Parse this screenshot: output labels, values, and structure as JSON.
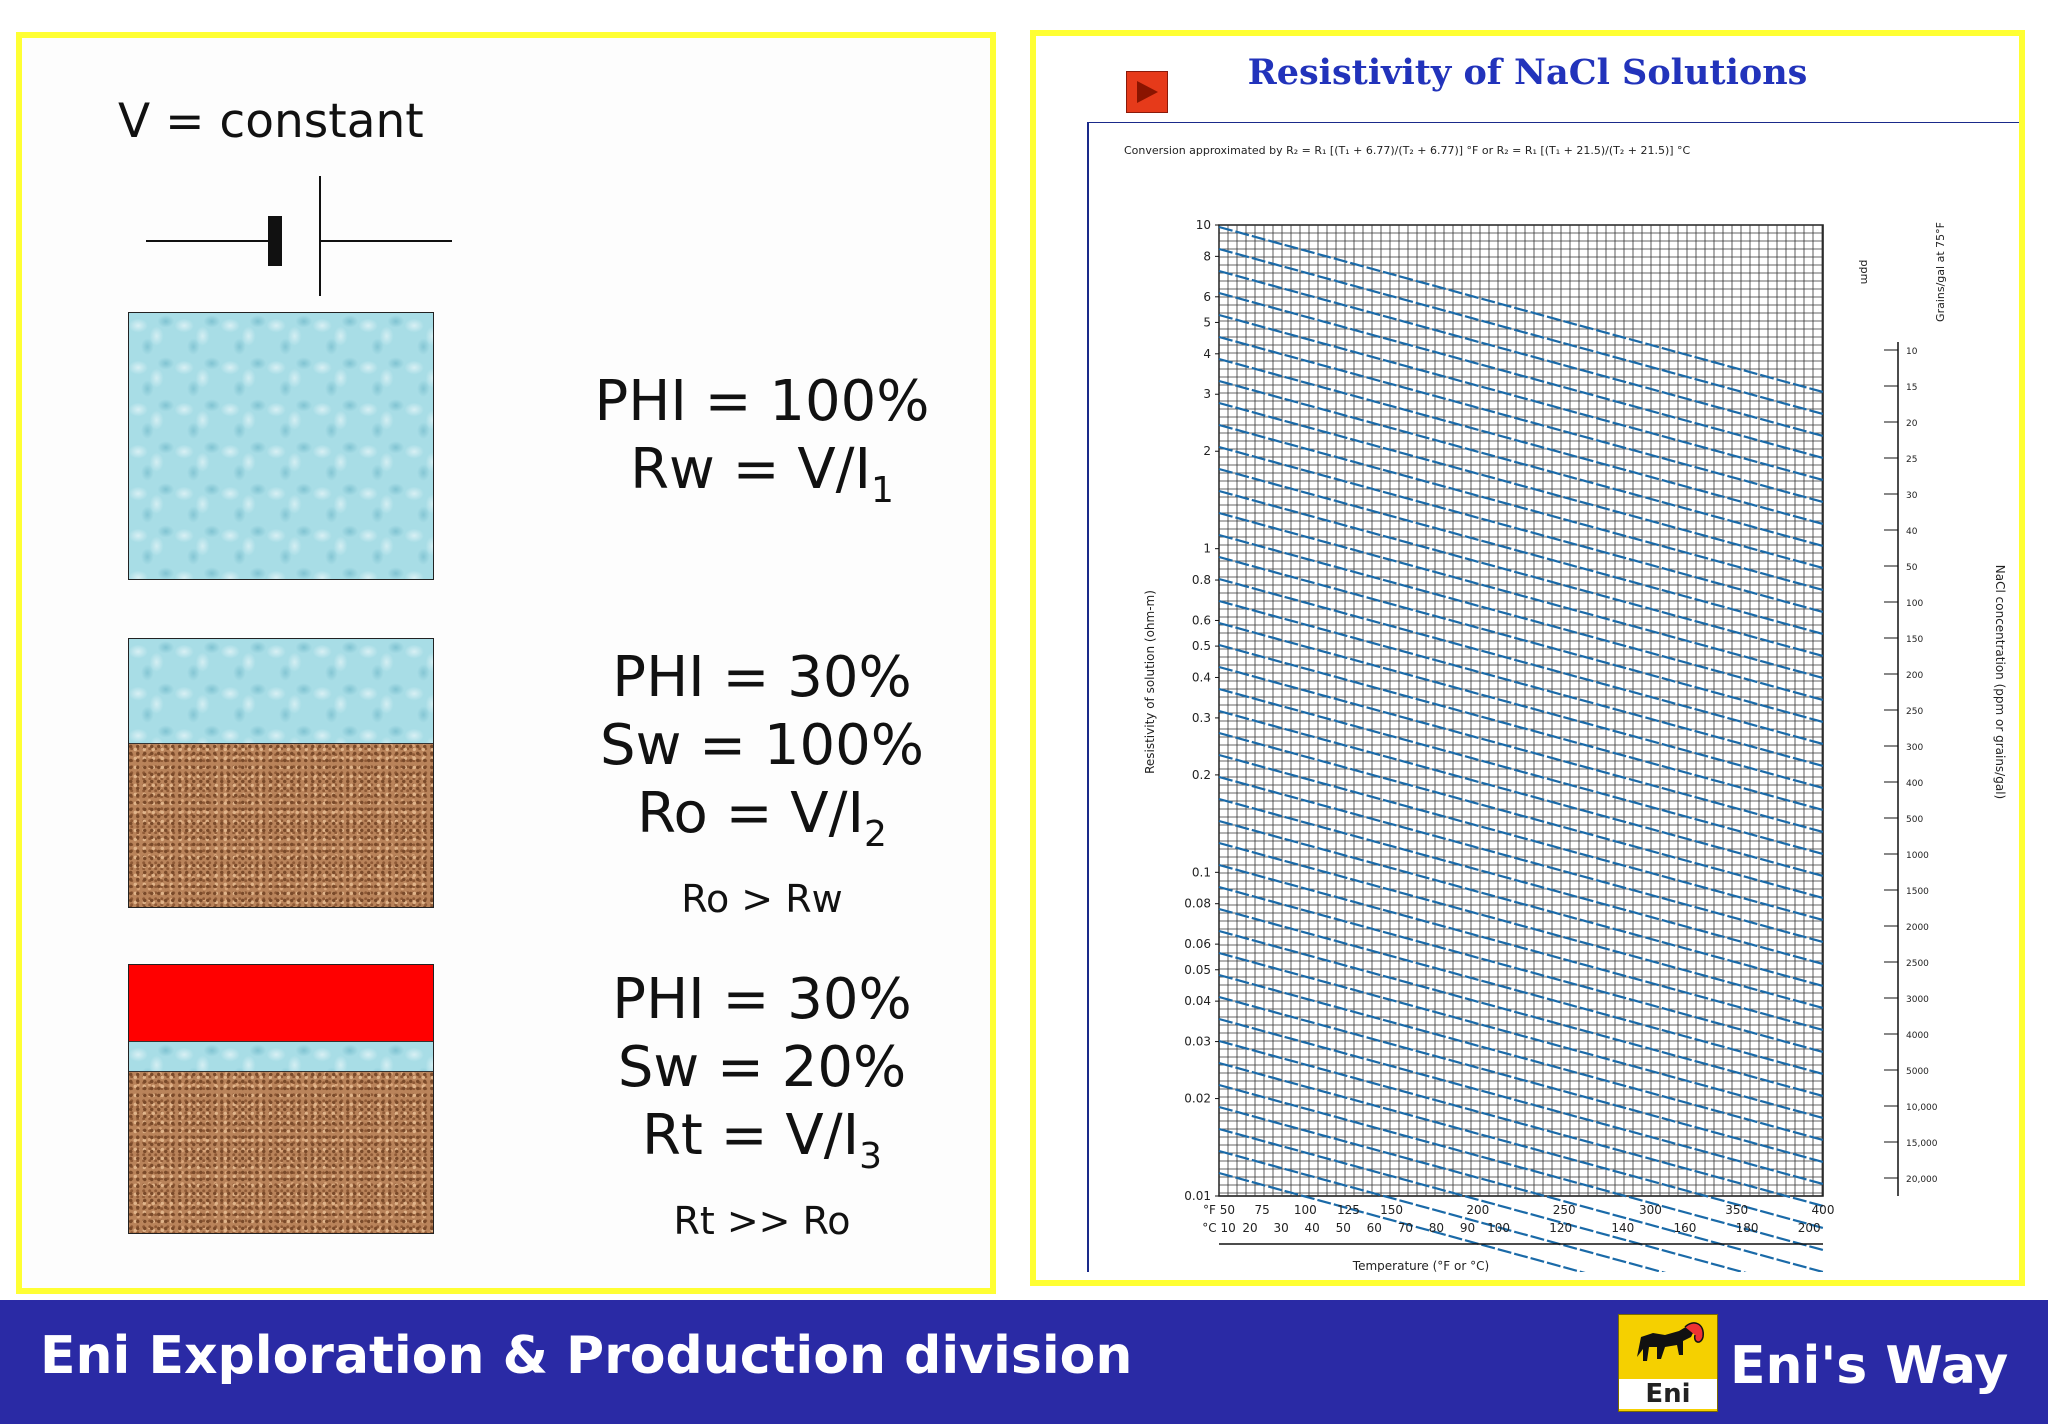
{
  "left": {
    "v_constant": "V = constant",
    "sample1": {
      "lines": [
        "PHI = 100%"
      ],
      "rw_text": "Rw = V/I",
      "rw_sub": "1"
    },
    "sample2": {
      "lines": [
        "PHI = 30%",
        "Sw = 100%"
      ],
      "ro_text": "Ro = V/I",
      "ro_sub": "2",
      "note": "Ro > Rw"
    },
    "sample3": {
      "lines": [
        "PHI = 30%",
        "Sw = 20%"
      ],
      "rt_text": "Rt = V/I",
      "rt_sub": "3",
      "note": "Rt >> Ro"
    },
    "colors": {
      "water": "#a8dde6",
      "rock": "#b9835a",
      "oil": "#ff0000"
    }
  },
  "chart": {
    "title": "Resistivity of NaCl Solutions",
    "formula": "Conversion approximated by R₂ = R₁ [(T₁ + 6.77)/(T₂ + 6.77)] °F or R₂ = R₁ [(T₁ + 21.5)/(T₂ + 21.5)] °C",
    "ylabel": "Resistivity of solution (ohm-m)",
    "xlabel": "Temperature (°F or °C)",
    "right_label": "NaCl concentration (ppm or grains/gal)",
    "right_top_label": "Grains/gal at 75°F",
    "ppm_label": "ppm",
    "y_ticks": [
      "10",
      "8",
      "6",
      "5",
      "4",
      "3",
      "2",
      "1",
      "0.8",
      "0.6",
      "0.5",
      "0.4",
      "0.3",
      "0.2",
      "0.1",
      "0.08",
      "0.06",
      "0.05",
      "0.04",
      "0.03",
      "0.02",
      "0.01"
    ],
    "x_ticks_f": [
      "°F 50",
      "75",
      "100",
      "125",
      "150",
      "200",
      "250",
      "300",
      "350",
      "400"
    ],
    "x_ticks_c": [
      "°C 10",
      "20",
      "30",
      "40",
      "50",
      "60",
      "70",
      "80",
      "90",
      "100",
      "120",
      "140",
      "160",
      "180",
      "200"
    ],
    "grains_ticks": [
      "10",
      "15",
      "20",
      "25",
      "30",
      "40",
      "50",
      "100",
      "150",
      "200",
      "250",
      "300",
      "400",
      "500",
      "1000",
      "1500",
      "2000",
      "2500",
      "3000",
      "4000",
      "5000",
      "10,000",
      "15,000",
      "20,000"
    ],
    "line_color": "#1a6aa8",
    "line_count": 44
  },
  "footer": {
    "division": "Eni Exploration & Production division",
    "logo_label": "Eni",
    "brand": "Eni's Way",
    "bg": "#2a2aa5"
  }
}
